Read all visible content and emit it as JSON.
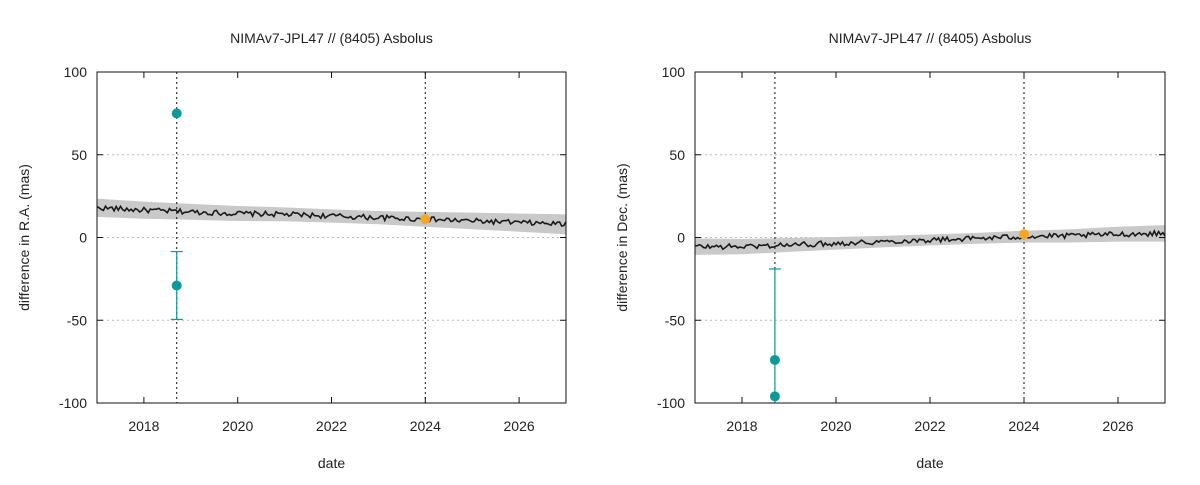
{
  "chart_data": [
    {
      "type": "line",
      "title": "NIMAv7-JPL47 // (8405) Asbolus",
      "xlabel": "date",
      "ylabel": "difference in R.A. (mas)",
      "xlim": [
        2017.0,
        2027.0
      ],
      "ylim": [
        -100,
        100
      ],
      "xticks": [
        "2018",
        "2020",
        "2022",
        "2024",
        "2026"
      ],
      "yticks": [
        "100",
        "50",
        "0",
        "-50",
        "-100"
      ],
      "grid": "horizontal dotted",
      "vlines": [
        2018.7,
        2024.0
      ],
      "band": {
        "x": [
          2017.0,
          2018.0,
          2019.0,
          2020.0,
          2021.0,
          2022.0,
          2023.0,
          2024.0,
          2025.0,
          2026.0,
          2027.0
        ],
        "center": [
          18,
          16.5,
          15.5,
          14.5,
          14,
          13,
          12,
          11,
          10,
          9,
          8
        ],
        "half_width": [
          5.5,
          5.2,
          4.8,
          4.5,
          4.2,
          4.0,
          4.0,
          4.5,
          5.0,
          5.5,
          6.0
        ]
      },
      "observations": [
        {
          "x": 2018.7,
          "y": 75,
          "err": 0,
          "color": "#0e9999"
        },
        {
          "x": 2018.7,
          "y": -29,
          "err": 20.5,
          "color": "#0e9999"
        }
      ],
      "reference_point": {
        "x": 2024.0,
        "y": 11,
        "color": "#f5a623"
      }
    },
    {
      "type": "line",
      "title": "NIMAv7-JPL47 // (8405) Asbolus",
      "xlabel": "date",
      "ylabel": "difference in Dec. (mas)",
      "xlim": [
        2017.0,
        2027.0
      ],
      "ylim": [
        -100,
        100
      ],
      "xticks": [
        "2018",
        "2020",
        "2022",
        "2024",
        "2026"
      ],
      "yticks": [
        "100",
        "50",
        "0",
        "-50",
        "-100"
      ],
      "grid": "horizontal dotted",
      "vlines": [
        2018.7,
        2024.0
      ],
      "band": {
        "x": [
          2017.0,
          2018.0,
          2019.0,
          2020.0,
          2021.0,
          2022.0,
          2023.0,
          2024.0,
          2025.0,
          2026.0,
          2027.0
        ],
        "center": [
          -5.5,
          -5.5,
          -4.5,
          -3.5,
          -2.5,
          -1.5,
          -0.5,
          0.5,
          1.0,
          2.0,
          2.5
        ],
        "half_width": [
          5.0,
          4.6,
          4.2,
          3.8,
          3.5,
          3.3,
          3.3,
          3.6,
          4.0,
          4.5,
          5.0
        ]
      },
      "observations": [
        {
          "x": 2018.7,
          "y": -74,
          "err": 0,
          "color": "#0e9999"
        },
        {
          "x": 2018.7,
          "y": -96,
          "err": 77,
          "color": "#0e9999"
        }
      ],
      "reference_point": {
        "x": 2024.0,
        "y": 2,
        "color": "#f5a623"
      }
    }
  ]
}
